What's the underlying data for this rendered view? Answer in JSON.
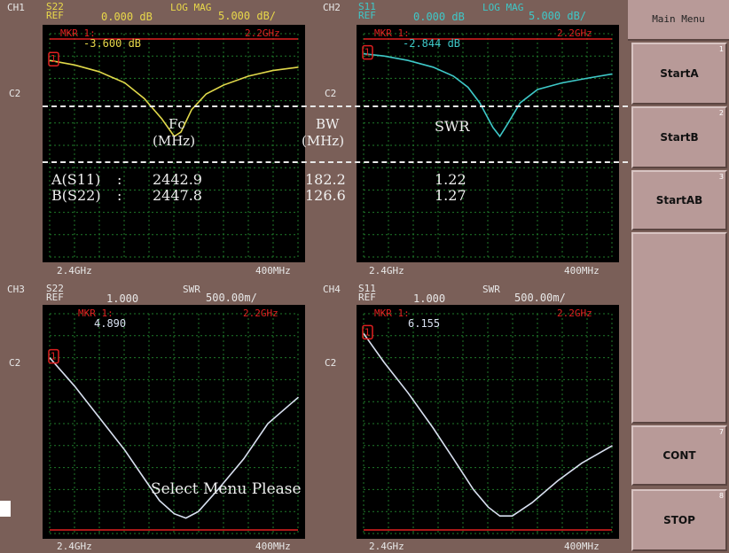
{
  "screen": {
    "status_message": "Select Menu Please"
  },
  "channels": [
    {
      "id": "CH1",
      "param": "S22",
      "format": "LOG MAG",
      "ref_label": "REF",
      "ref_value": "0.000 dB",
      "scale": "5.000 dB/",
      "marker_label": "MKR 1:",
      "marker_freq": "2.2GHz",
      "marker_value": "-3.600 dB",
      "marker_num": "1",
      "side_label": "C2",
      "start": "2.4GHz",
      "span": "400MHz",
      "trace_color": "#e0d84a"
    },
    {
      "id": "CH2",
      "param": "S11",
      "format": "LOG MAG",
      "ref_label": "REF",
      "ref_value": "0.000 dB",
      "scale": "5.000 dB/",
      "marker_label": "MKR 1:",
      "marker_freq": "2.2GHz",
      "marker_value": "-2.844 dB",
      "marker_num": "1",
      "side_label": "C2",
      "start": "2.4GHz",
      "span": "400MHz",
      "trace_color": "#3ec8c8"
    },
    {
      "id": "CH3",
      "param": "S22",
      "format": "SWR",
      "ref_label": "REF",
      "ref_value": "1.000",
      "scale": "500.00m/",
      "marker_label": "MKR 1:",
      "marker_freq": "2.2GHz",
      "marker_value": "4.890",
      "marker_num": "1",
      "side_label": "C2",
      "start": "2.4GHz",
      "span": "400MHz",
      "trace_color": "#d8e0f0"
    },
    {
      "id": "CH4",
      "param": "S11",
      "format": "SWR",
      "ref_label": "REF",
      "ref_value": "1.000",
      "scale": "500.00m/",
      "marker_label": "MKR 1:",
      "marker_freq": "2.2GHz",
      "marker_value": "6.155",
      "marker_num": "1",
      "side_label": "C2",
      "start": "2.4GHz",
      "span": "400MHz",
      "trace_color": "#d8e0f0"
    }
  ],
  "results": {
    "col_fc": "Fc",
    "col_fc_unit": "(MHz)",
    "col_bw": "BW",
    "col_bw_unit": "(MHz)",
    "col_swr": "SWR",
    "rows": [
      {
        "label": "A(S11)",
        "sep": ":",
        "fc": "2442.9",
        "bw": "182.2",
        "swr": "1.22"
      },
      {
        "label": "B(S22)",
        "sep": ":",
        "fc": "2447.8",
        "bw": "126.6",
        "swr": "1.27"
      }
    ]
  },
  "menu": {
    "title": "Main Menu",
    "keys": [
      {
        "label": "StartA",
        "num": "1"
      },
      {
        "label": "StartB",
        "num": "2"
      },
      {
        "label": "StartAB",
        "num": "3"
      },
      {
        "label": "CONT",
        "num": "7"
      },
      {
        "label": "STOP",
        "num": "8"
      }
    ]
  },
  "colors": {
    "header_yellow": "#e8d84a",
    "header_cyan": "#3ec8c8",
    "marker_red": "#e02020",
    "grid_green": "#1f7a2a",
    "background": "#7a5f58"
  }
}
